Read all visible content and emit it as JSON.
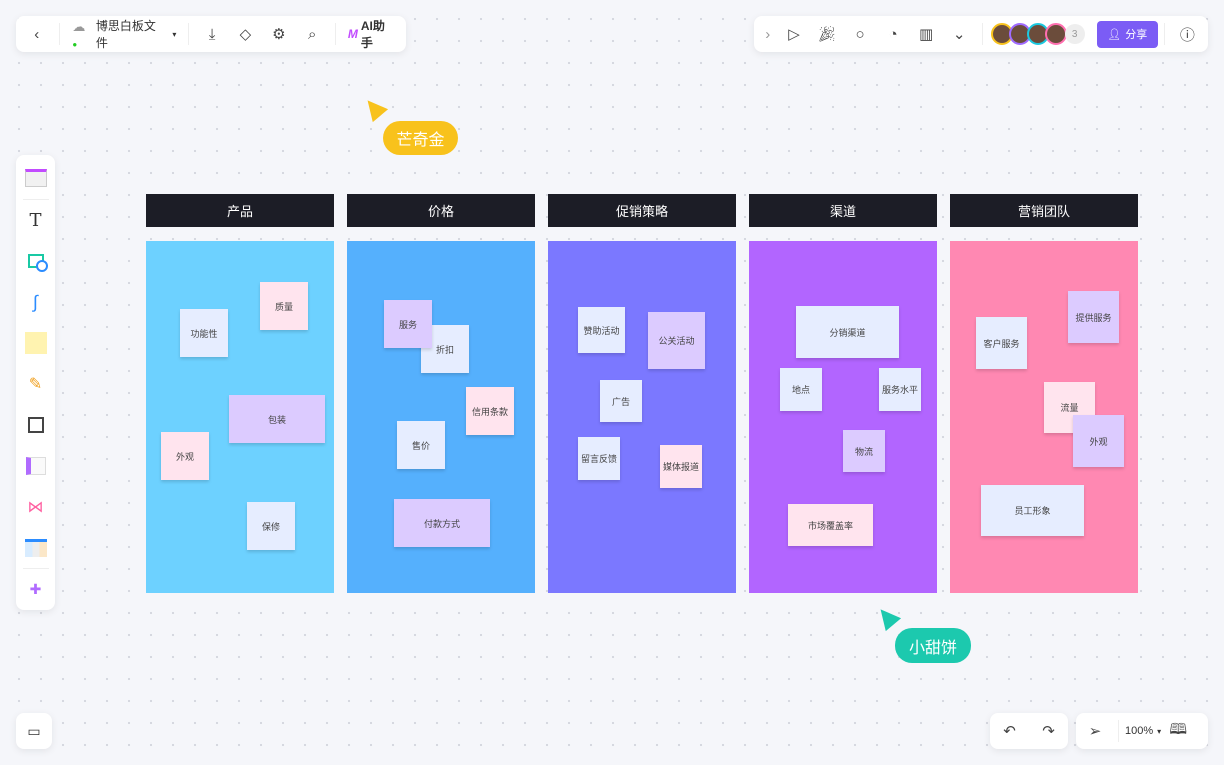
{
  "toolbar": {
    "file_name": "博思白板文件",
    "ai_label": "AI助手",
    "share_label": "分享",
    "collaborator_count": "3"
  },
  "zoom": {
    "level": "100%"
  },
  "colors": {
    "accent": "#7b5cf5",
    "header": "#1c1d26",
    "note_blue": "#e6edff",
    "note_pink": "#ffe4ee",
    "note_purple": "#dccbff"
  },
  "cursors": [
    {
      "name": "芒奇金",
      "color": "#f8c21c"
    },
    {
      "name": "小甜饼",
      "color": "#1cc9ae"
    }
  ],
  "columns": [
    {
      "title": "产品",
      "color": "#6dd1ff",
      "notes": [
        "功能性",
        "质量",
        "包装",
        "外观",
        "保修"
      ]
    },
    {
      "title": "价格",
      "color": "#55b0fd",
      "notes": [
        "折扣",
        "服务",
        "信用条款",
        "售价",
        "付款方式"
      ]
    },
    {
      "title": "促销策略",
      "color": "#7b78ff",
      "notes": [
        "赞助活动",
        "公关活动",
        "广告",
        "留言反馈",
        "媒体报道"
      ]
    },
    {
      "title": "渠道",
      "color": "#b265ff",
      "notes": [
        "分销渠道",
        "地点",
        "服务水平",
        "物流",
        "市场覆盖率"
      ]
    },
    {
      "title": "营销团队",
      "color": "#ff88b2",
      "notes": [
        "客户服务",
        "提供服务",
        "流量",
        "外观",
        "员工形象"
      ]
    }
  ]
}
